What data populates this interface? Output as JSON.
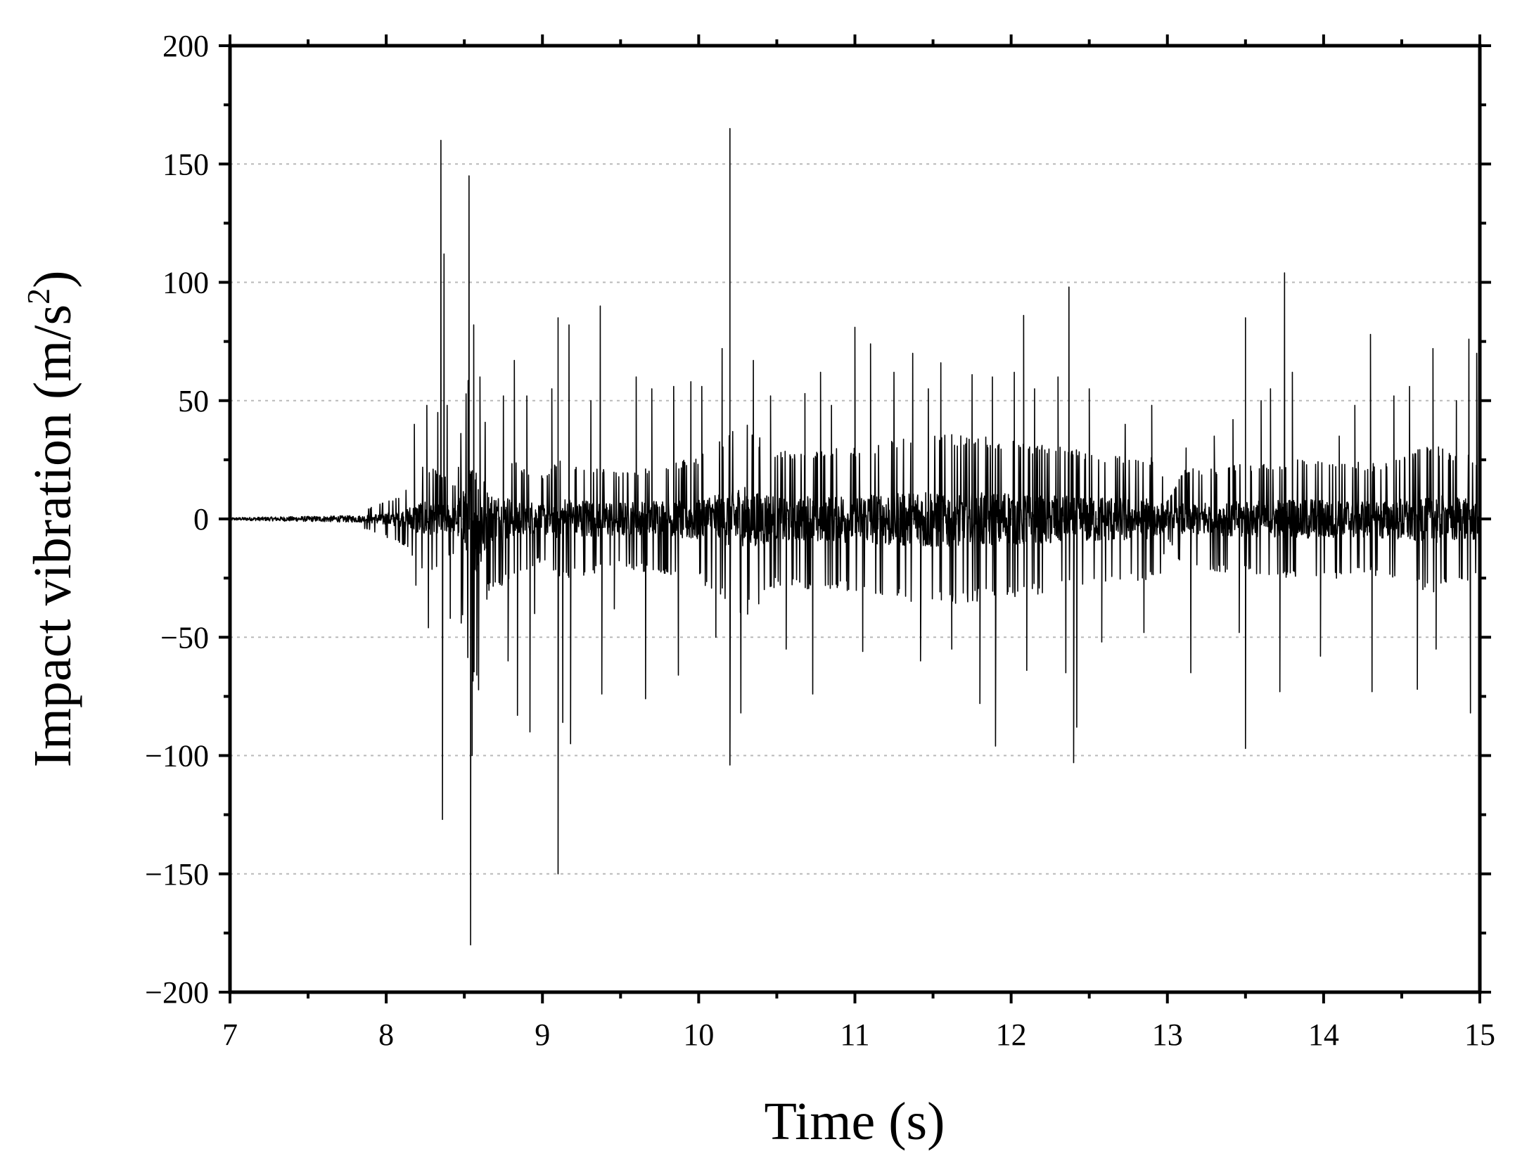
{
  "chart_data": {
    "type": "line",
    "title": "",
    "xlabel": "Time (s)",
    "ylabel": "Impact vibration (m/s",
    "ylabel_superscript": "2",
    "ylabel_close": ")",
    "xlim": [
      7,
      15
    ],
    "ylim": [
      -200,
      200
    ],
    "xticks": [
      7,
      8,
      9,
      10,
      11,
      12,
      13,
      14,
      15
    ],
    "yticks": [
      200,
      150,
      100,
      50,
      0,
      -50,
      -100,
      -150,
      -200
    ],
    "xtick_labels": [
      "7",
      "8",
      "9",
      "10",
      "11",
      "12",
      "13",
      "14",
      "15"
    ],
    "ytick_labels": [
      "200",
      "150",
      "100",
      "50",
      "0",
      "−50",
      "−100",
      "−150",
      "−200"
    ],
    "grid": "horizontal dotted",
    "legend": "none",
    "series": [
      {
        "color": "#000000",
        "quiet_until": 7.85,
        "envelope": [
          [
            7.0,
            0.6
          ],
          [
            7.85,
            1.5
          ],
          [
            8.1,
            4
          ],
          [
            8.25,
            9
          ],
          [
            8.45,
            6
          ],
          [
            8.5,
            22
          ],
          [
            8.6,
            30
          ],
          [
            8.65,
            12
          ],
          [
            8.8,
            10
          ],
          [
            9.0,
            7
          ],
          [
            9.1,
            10
          ],
          [
            9.5,
            8
          ],
          [
            10.0,
            10
          ],
          [
            10.3,
            16
          ],
          [
            10.5,
            11
          ],
          [
            11.0,
            12
          ],
          [
            11.5,
            14
          ],
          [
            12.0,
            13
          ],
          [
            12.5,
            11
          ],
          [
            12.95,
            10
          ],
          [
            13.0,
            3
          ],
          [
            13.1,
            8
          ],
          [
            13.5,
            9
          ],
          [
            14.0,
            10
          ],
          [
            14.3,
            9
          ],
          [
            14.7,
            12
          ],
          [
            15.0,
            10
          ]
        ],
        "spikes": [
          [
            8.18,
            40
          ],
          [
            8.19,
            -28
          ],
          [
            8.26,
            48
          ],
          [
            8.27,
            -46
          ],
          [
            8.33,
            45
          ],
          [
            8.35,
            160
          ],
          [
            8.36,
            -127
          ],
          [
            8.37,
            112
          ],
          [
            8.39,
            48
          ],
          [
            8.41,
            -42
          ],
          [
            8.48,
            -44
          ],
          [
            8.53,
            145
          ],
          [
            8.54,
            -180
          ],
          [
            8.55,
            -100
          ],
          [
            8.56,
            82
          ],
          [
            8.58,
            -66
          ],
          [
            8.6,
            60
          ],
          [
            8.75,
            52
          ],
          [
            8.78,
            -60
          ],
          [
            8.82,
            67
          ],
          [
            8.84,
            -83
          ],
          [
            8.9,
            52
          ],
          [
            8.92,
            -90
          ],
          [
            8.95,
            -40
          ],
          [
            9.06,
            55
          ],
          [
            9.1,
            85
          ],
          [
            9.1,
            -150
          ],
          [
            9.13,
            -86
          ],
          [
            9.17,
            82
          ],
          [
            9.18,
            -95
          ],
          [
            9.31,
            50
          ],
          [
            9.37,
            90
          ],
          [
            9.38,
            -74
          ],
          [
            9.46,
            -38
          ],
          [
            9.6,
            60
          ],
          [
            9.66,
            -76
          ],
          [
            9.7,
            55
          ],
          [
            9.84,
            56
          ],
          [
            9.87,
            -66
          ],
          [
            9.95,
            58
          ],
          [
            10.02,
            56
          ],
          [
            10.11,
            -50
          ],
          [
            10.15,
            72
          ],
          [
            10.2,
            165
          ],
          [
            10.2,
            -104
          ],
          [
            10.27,
            -82
          ],
          [
            10.35,
            67
          ],
          [
            10.46,
            52
          ],
          [
            10.56,
            -55
          ],
          [
            10.68,
            53
          ],
          [
            10.73,
            -74
          ],
          [
            10.78,
            62
          ],
          [
            10.85,
            48
          ],
          [
            11.0,
            81
          ],
          [
            11.05,
            -56
          ],
          [
            11.1,
            74
          ],
          [
            11.25,
            62
          ],
          [
            11.37,
            70
          ],
          [
            11.42,
            -60
          ],
          [
            11.47,
            55
          ],
          [
            11.55,
            66
          ],
          [
            11.62,
            -55
          ],
          [
            11.75,
            61
          ],
          [
            11.8,
            -78
          ],
          [
            11.88,
            60
          ],
          [
            11.9,
            -96
          ],
          [
            12.02,
            62
          ],
          [
            12.08,
            86
          ],
          [
            12.1,
            -64
          ],
          [
            12.15,
            55
          ],
          [
            12.3,
            60
          ],
          [
            12.35,
            -65
          ],
          [
            12.37,
            98
          ],
          [
            12.4,
            -103
          ],
          [
            12.42,
            -88
          ],
          [
            12.5,
            55
          ],
          [
            12.58,
            -52
          ],
          [
            12.73,
            40
          ],
          [
            12.85,
            -48
          ],
          [
            12.9,
            48
          ],
          [
            13.12,
            30
          ],
          [
            13.15,
            -65
          ],
          [
            13.3,
            35
          ],
          [
            13.42,
            42
          ],
          [
            13.46,
            -48
          ],
          [
            13.5,
            85
          ],
          [
            13.5,
            -97
          ],
          [
            13.6,
            50
          ],
          [
            13.66,
            55
          ],
          [
            13.72,
            -73
          ],
          [
            13.75,
            104
          ],
          [
            13.8,
            62
          ],
          [
            13.98,
            -58
          ],
          [
            14.1,
            35
          ],
          [
            14.2,
            48
          ],
          [
            14.3,
            78
          ],
          [
            14.31,
            -73
          ],
          [
            14.45,
            52
          ],
          [
            14.55,
            56
          ],
          [
            14.6,
            -72
          ],
          [
            14.7,
            72
          ],
          [
            14.72,
            -55
          ],
          [
            14.85,
            50
          ],
          [
            14.93,
            76
          ],
          [
            14.94,
            -82
          ],
          [
            14.98,
            70
          ]
        ]
      }
    ]
  }
}
